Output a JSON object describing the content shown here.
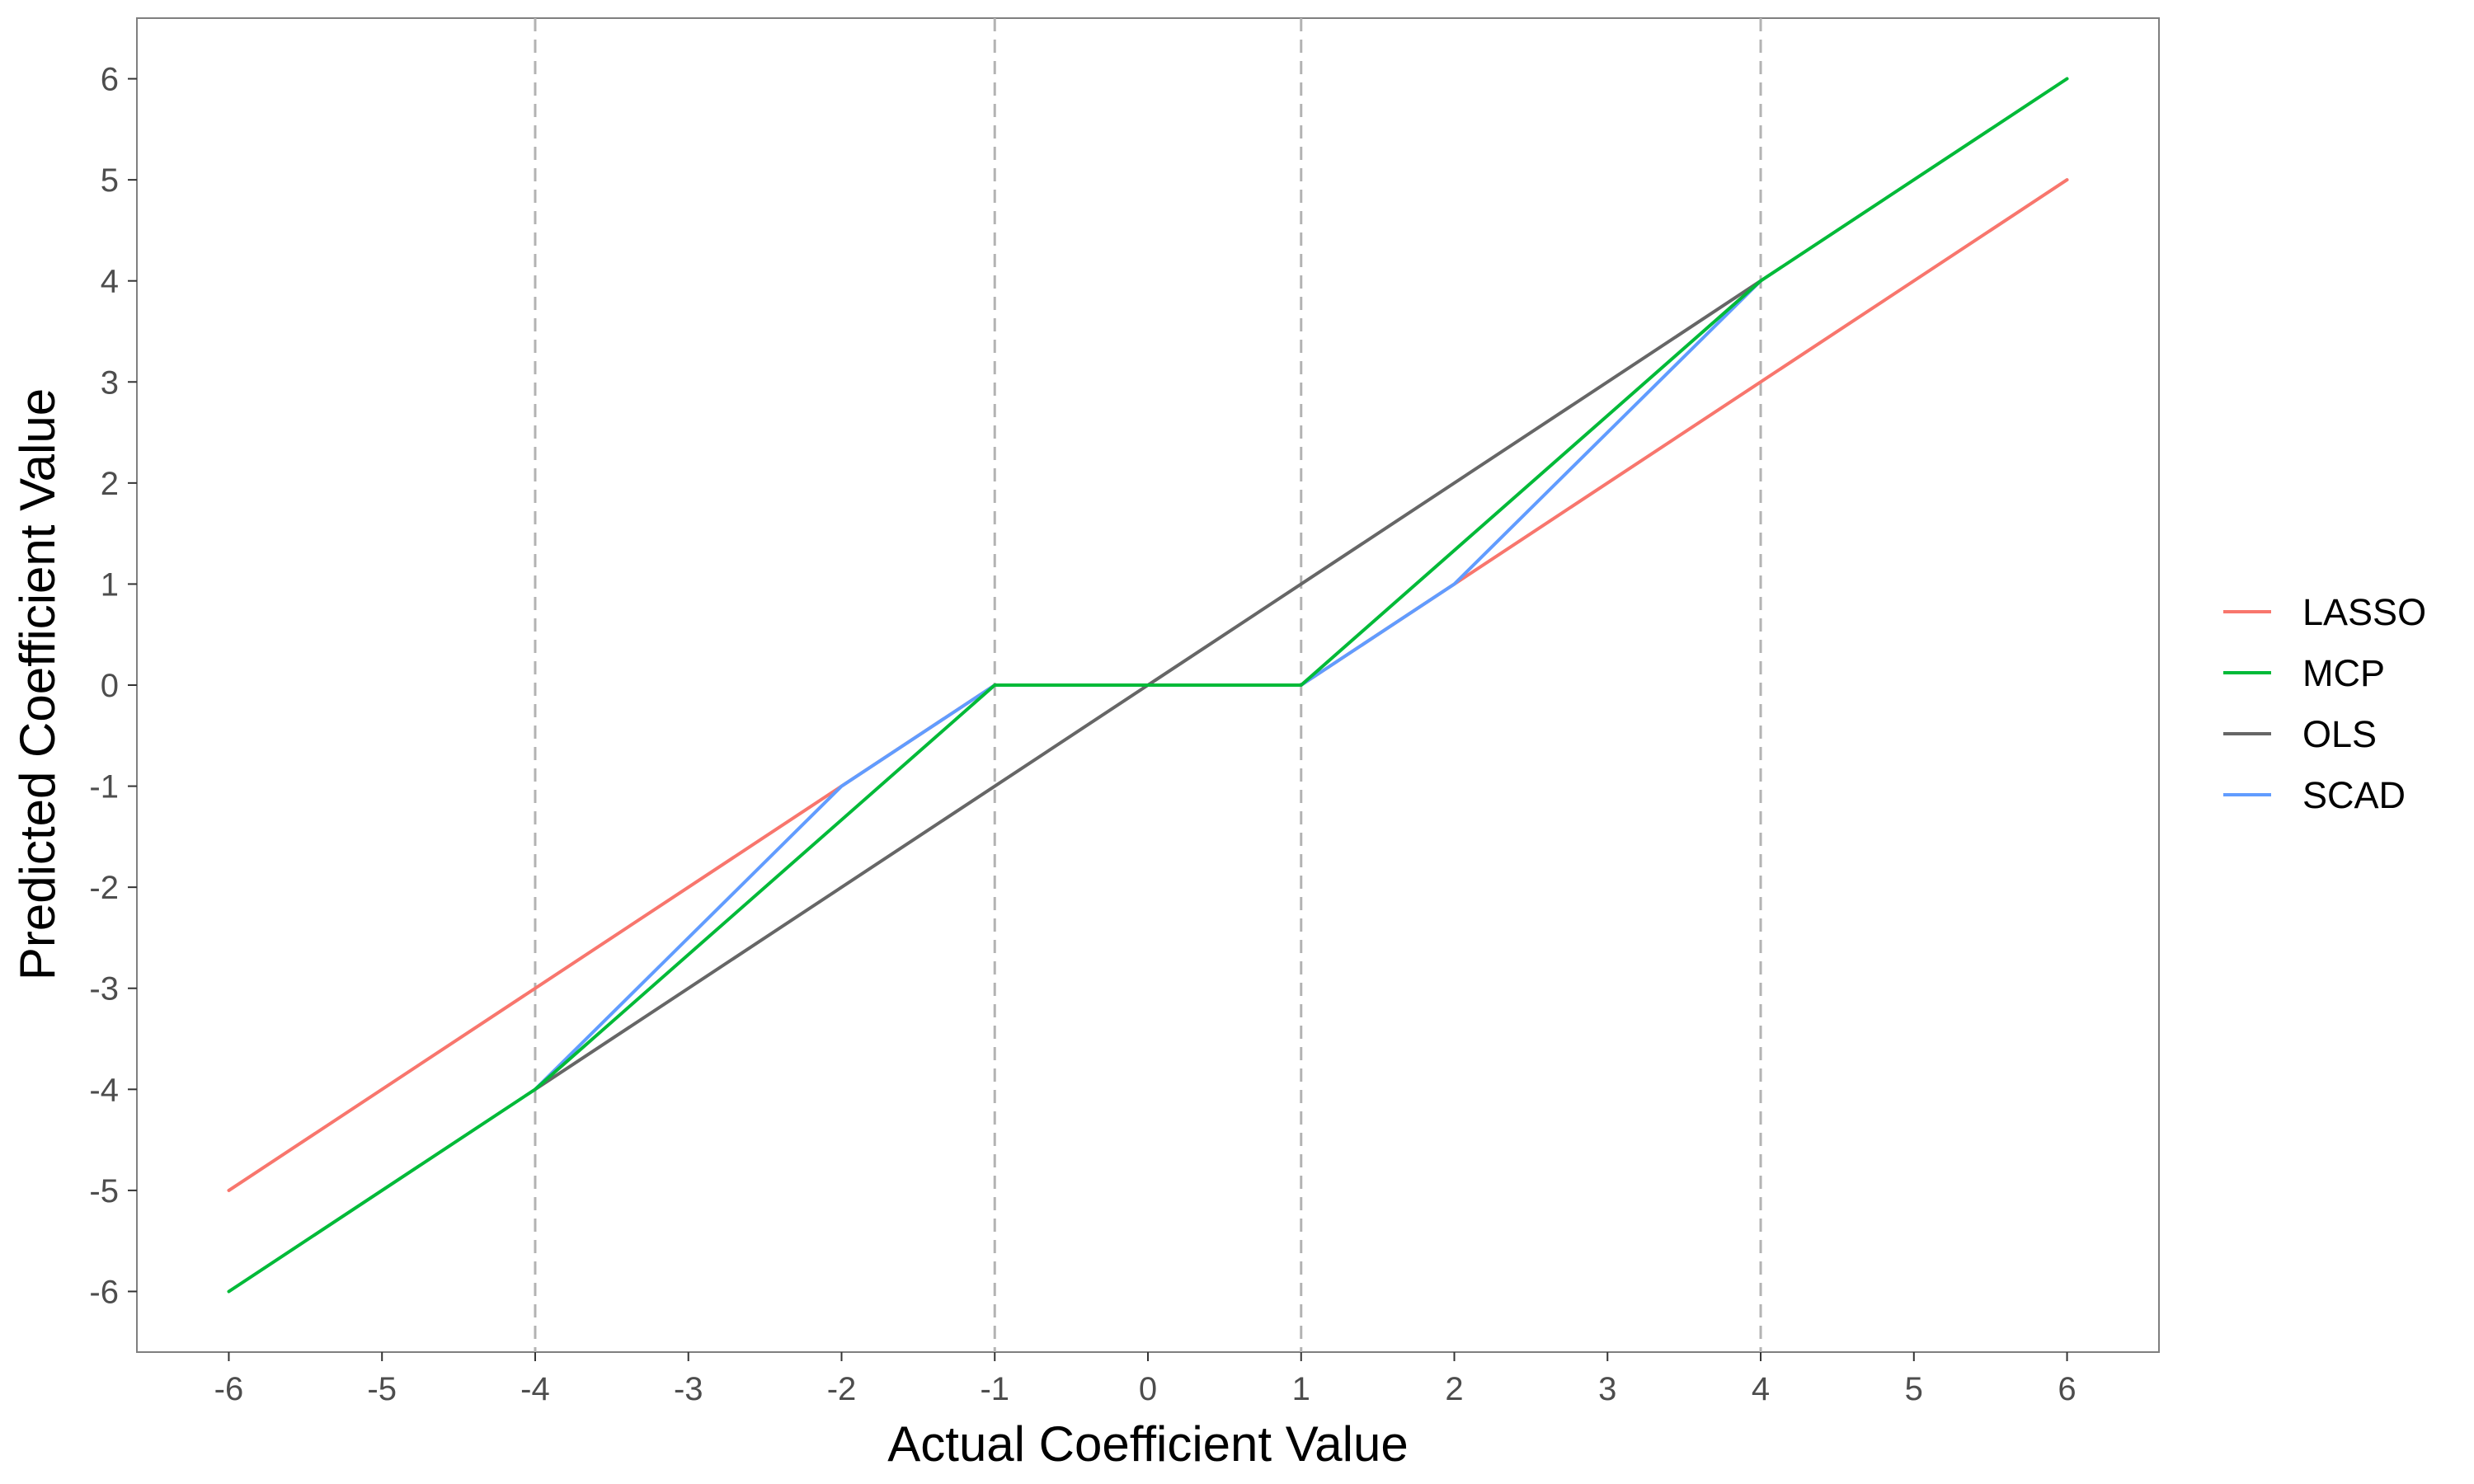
{
  "chart_data": {
    "type": "line",
    "title": "",
    "xlabel": "Actual Coefficient Value",
    "ylabel": "Predicted Coefficient Value",
    "xlim": [
      -6.6,
      6.6
    ],
    "ylim": [
      -6.6,
      6.6
    ],
    "xticks": [
      -6,
      -5,
      -4,
      -3,
      -2,
      -1,
      0,
      1,
      2,
      3,
      4,
      5,
      6
    ],
    "yticks": [
      -6,
      -5,
      -4,
      -3,
      -2,
      -1,
      0,
      1,
      2,
      3,
      4,
      5,
      6
    ],
    "vlines": [
      -4,
      -1,
      1,
      4
    ],
    "grid": false,
    "legend_position": "right",
    "series": [
      {
        "name": "OLS",
        "color": "#666666",
        "x": [
          -4,
          4
        ],
        "y": [
          -4,
          4
        ]
      },
      {
        "name": "LASSO",
        "color": "#F8766D",
        "x": [
          -6,
          -1,
          1,
          6
        ],
        "y": [
          -5,
          0,
          0,
          5
        ]
      },
      {
        "name": "SCAD",
        "color": "#619CFF",
        "x": [
          -4,
          -2,
          -1,
          1,
          2,
          4
        ],
        "y": [
          -4,
          -1,
          0,
          0,
          1,
          4
        ]
      },
      {
        "name": "MCP",
        "color": "#00BA38",
        "x": [
          -6,
          -4,
          -1,
          1,
          4,
          6
        ],
        "y": [
          -6,
          -4,
          0,
          0,
          4,
          6
        ]
      }
    ],
    "legend": [
      "LASSO",
      "MCP",
      "OLS",
      "SCAD"
    ]
  }
}
